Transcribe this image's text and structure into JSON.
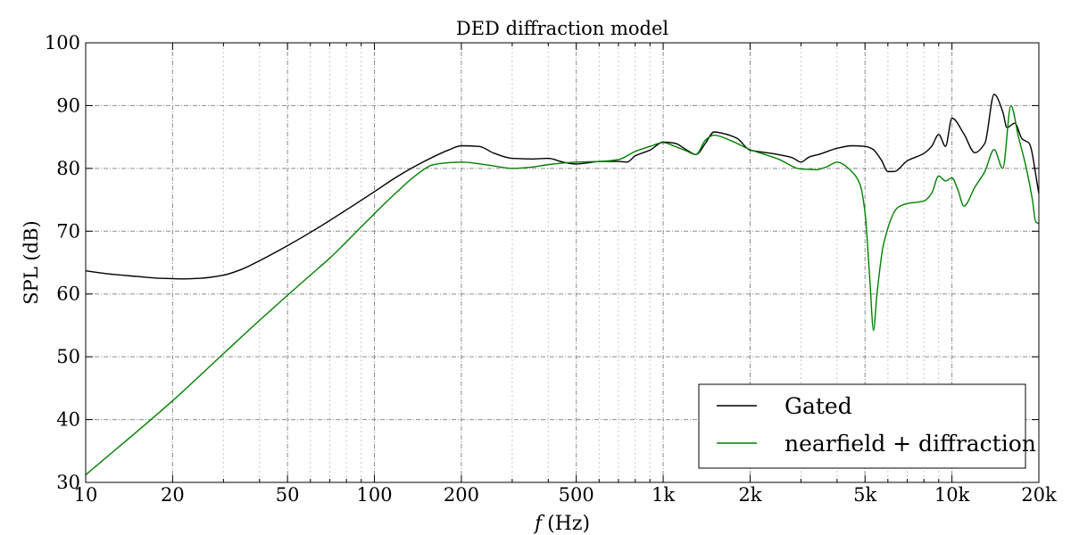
{
  "chart_data": {
    "type": "line",
    "title": "DED diffraction model",
    "xlabel_var": "f",
    "xlabel_unit": "(Hz)",
    "ylabel": "SPL (dB)",
    "x_scale": "log",
    "xlim": [
      10,
      20000
    ],
    "ylim": [
      30,
      100
    ],
    "x_major_ticks": [
      10,
      20,
      50,
      100,
      200,
      500,
      1000,
      2000,
      5000,
      10000,
      20000
    ],
    "x_tick_labels": [
      "10",
      "20",
      "50",
      "100",
      "200",
      "500",
      "1k",
      "2k",
      "5k",
      "10k",
      "20k"
    ],
    "y_ticks": [
      30,
      40,
      50,
      60,
      70,
      80,
      90,
      100
    ],
    "y_tick_labels": [
      "30",
      "40",
      "50",
      "60",
      "70",
      "80",
      "90",
      "100"
    ],
    "grid": true,
    "legend_position": "lower-right",
    "series": [
      {
        "name": "Gated",
        "color": "#000000",
        "points": [
          [
            10,
            63.7
          ],
          [
            12,
            63.2
          ],
          [
            15,
            62.8
          ],
          [
            18,
            62.5
          ],
          [
            22,
            62.4
          ],
          [
            25,
            62.5
          ],
          [
            30,
            63.0
          ],
          [
            35,
            64.0
          ],
          [
            40,
            65.3
          ],
          [
            50,
            67.7
          ],
          [
            60,
            69.8
          ],
          [
            80,
            73.4
          ],
          [
            100,
            76.3
          ],
          [
            120,
            78.7
          ],
          [
            150,
            81.2
          ],
          [
            180,
            82.9
          ],
          [
            200,
            83.6
          ],
          [
            230,
            83.5
          ],
          [
            260,
            82.4
          ],
          [
            300,
            81.6
          ],
          [
            350,
            81.5
          ],
          [
            400,
            81.6
          ],
          [
            450,
            81.0
          ],
          [
            500,
            80.7
          ],
          [
            550,
            80.9
          ],
          [
            600,
            81.1
          ],
          [
            700,
            81.1
          ],
          [
            750,
            81.0
          ],
          [
            800,
            82.0
          ],
          [
            900,
            82.9
          ],
          [
            1000,
            84.2
          ],
          [
            1100,
            84.0
          ],
          [
            1200,
            83.0
          ],
          [
            1300,
            82.2
          ],
          [
            1400,
            84.0
          ],
          [
            1500,
            85.8
          ],
          [
            1600,
            85.6
          ],
          [
            1800,
            84.8
          ],
          [
            2000,
            82.9
          ],
          [
            2200,
            82.6
          ],
          [
            2500,
            82.2
          ],
          [
            2800,
            81.7
          ],
          [
            3000,
            81.0
          ],
          [
            3200,
            81.8
          ],
          [
            3500,
            82.3
          ],
          [
            4000,
            83.2
          ],
          [
            4500,
            83.6
          ],
          [
            5000,
            83.5
          ],
          [
            5300,
            83.1
          ],
          [
            5700,
            81.3
          ],
          [
            6000,
            79.5
          ],
          [
            6300,
            79.5
          ],
          [
            7000,
            81.2
          ],
          [
            8000,
            82.4
          ],
          [
            8500,
            83.5
          ],
          [
            9000,
            85.4
          ],
          [
            9500,
            83.5
          ],
          [
            10000,
            88.0
          ],
          [
            11000,
            85.5
          ],
          [
            12000,
            82.5
          ],
          [
            13000,
            84.0
          ],
          [
            14000,
            91.8
          ],
          [
            15000,
            89.0
          ],
          [
            15500,
            86.5
          ],
          [
            16500,
            87.2
          ],
          [
            17500,
            84.7
          ],
          [
            18500,
            84.0
          ],
          [
            20000,
            76.0
          ]
        ]
      },
      {
        "name": "nearfield + diffraction",
        "color": "#008000",
        "points": [
          [
            10,
            31.2
          ],
          [
            20,
            43.0
          ],
          [
            30,
            50.5
          ],
          [
            40,
            55.8
          ],
          [
            50,
            59.8
          ],
          [
            60,
            63.0
          ],
          [
            70,
            65.7
          ],
          [
            100,
            72.8
          ],
          [
            120,
            76.3
          ],
          [
            140,
            79.0
          ],
          [
            160,
            80.6
          ],
          [
            180,
            80.9
          ],
          [
            200,
            81.0
          ],
          [
            250,
            80.5
          ],
          [
            300,
            80.0
          ],
          [
            350,
            80.2
          ],
          [
            400,
            80.6
          ],
          [
            500,
            81.0
          ],
          [
            600,
            81.1
          ],
          [
            700,
            81.4
          ],
          [
            800,
            82.7
          ],
          [
            900,
            83.5
          ],
          [
            1000,
            84.1
          ],
          [
            1100,
            83.5
          ],
          [
            1200,
            82.8
          ],
          [
            1300,
            82.2
          ],
          [
            1400,
            84.5
          ],
          [
            1500,
            85.3
          ],
          [
            1700,
            84.5
          ],
          [
            2000,
            83.0
          ],
          [
            2500,
            81.5
          ],
          [
            3000,
            79.9
          ],
          [
            3400,
            79.8
          ],
          [
            3700,
            80.3
          ],
          [
            4000,
            81.0
          ],
          [
            4500,
            79.5
          ],
          [
            4800,
            77.5
          ],
          [
            5000,
            73.0
          ],
          [
            5200,
            62.0
          ],
          [
            5350,
            54.2
          ],
          [
            5500,
            60.0
          ],
          [
            5800,
            68.0
          ],
          [
            6500,
            73.8
          ],
          [
            7000,
            74.4
          ],
          [
            7500,
            74.6
          ],
          [
            8000,
            74.8
          ],
          [
            8500,
            76.0
          ],
          [
            9000,
            78.8
          ],
          [
            9500,
            78.0
          ],
          [
            10000,
            78.5
          ],
          [
            10500,
            76.5
          ],
          [
            11000,
            74.0
          ],
          [
            12000,
            77.0
          ],
          [
            13000,
            79.5
          ],
          [
            14000,
            83.0
          ],
          [
            15000,
            80.0
          ],
          [
            16000,
            90.0
          ],
          [
            17000,
            85.0
          ],
          [
            18000,
            80.5
          ],
          [
            19000,
            75.0
          ],
          [
            19500,
            71.5
          ],
          [
            20000,
            71.2
          ]
        ]
      }
    ]
  }
}
